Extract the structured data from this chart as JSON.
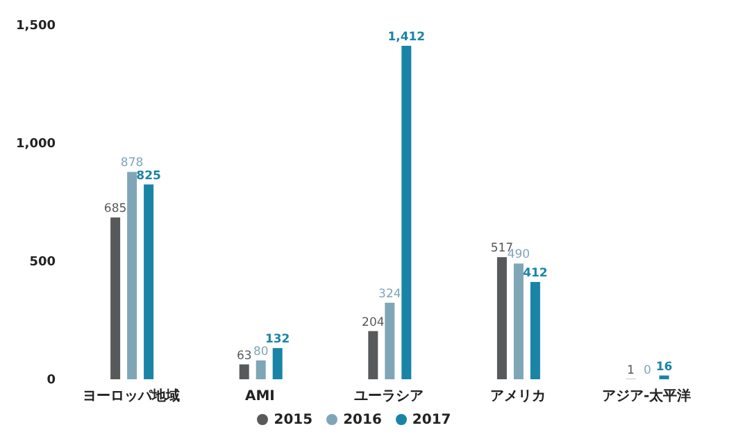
{
  "chart_data": {
    "type": "bar",
    "categories": [
      "ヨーロッパ地域",
      "AMI",
      "ユーラシア",
      "アメリカ",
      "アジア-太平洋"
    ],
    "series": [
      {
        "name": "2015",
        "color": "#58595b",
        "values": [
          685,
          63,
          204,
          517,
          1
        ],
        "value_labels": [
          "685",
          "63",
          "204",
          "517",
          "1"
        ]
      },
      {
        "name": "2016",
        "color": "#7fa6b6",
        "values": [
          878,
          80,
          324,
          490,
          0
        ],
        "value_labels": [
          "878",
          "80",
          "324",
          "490",
          "0"
        ]
      },
      {
        "name": "2017",
        "color": "#1a84a6",
        "values": [
          825,
          132,
          1412,
          412,
          16
        ],
        "value_labels": [
          "825",
          "132",
          "1,412",
          "412",
          "16"
        ]
      }
    ],
    "ylim": [
      0,
      1500
    ],
    "yticks": [
      0,
      500,
      {
        "value": 1000,
        "label": "1,000"
      },
      {
        "value": 1500,
        "label": "1,500"
      }
    ],
    "legend": "bottom"
  }
}
